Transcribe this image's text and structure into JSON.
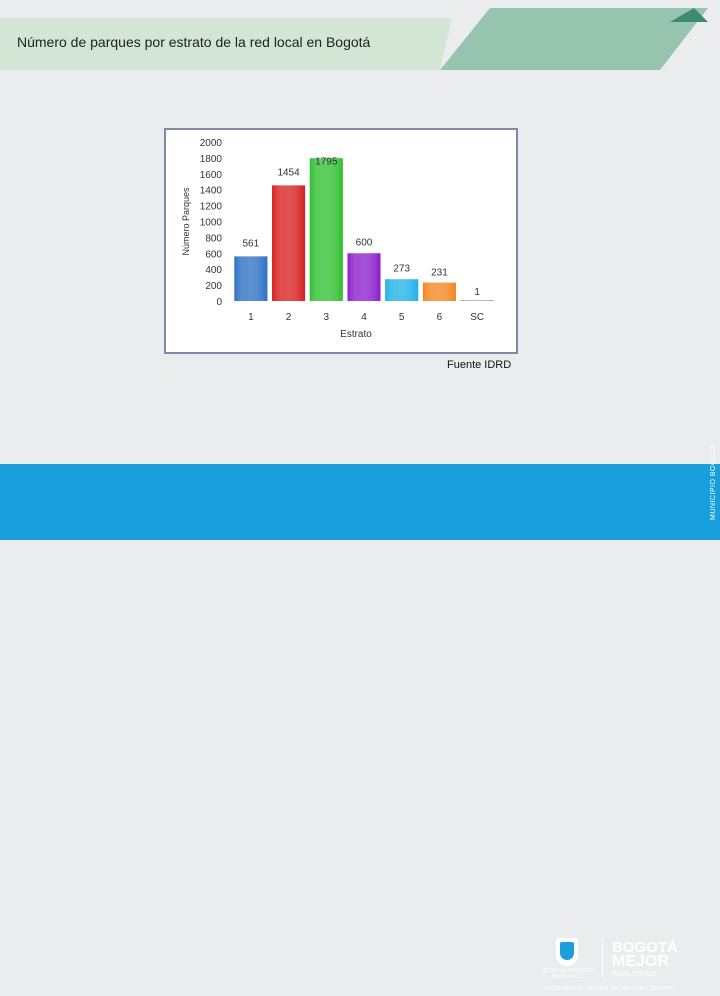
{
  "header": {
    "title": "Número de parques por estrato de la red local en Bogotá",
    "colors": {
      "band": "#d3e6d6",
      "accent": "#97c4ae"
    }
  },
  "chart_data": {
    "type": "bar",
    "categories": [
      "1",
      "2",
      "3",
      "4",
      "5",
      "6",
      "SC"
    ],
    "values": [
      561,
      1454,
      1795,
      600,
      273,
      231,
      1
    ],
    "colors": [
      "#2a6fc4",
      "#d71d1d",
      "#2fc02f",
      "#8a1ccc",
      "#1fb0e8",
      "#f2851f",
      "#999999"
    ],
    "xlabel": "Estrato",
    "ylabel": "Número Parques",
    "ylim": [
      0,
      2000
    ],
    "yticks": [
      "0",
      "200",
      "400",
      "600",
      "800",
      "1000",
      "1200",
      "1400",
      "1600",
      "1800",
      "2000"
    ],
    "grid": false,
    "legend": "none"
  },
  "source": "Fuente IDRD",
  "footer": {
    "color": "#19a0dc",
    "side_text": "MUNICIPIO BOGOTA",
    "logo": {
      "alcaldia": "ALCALDÍA MAYOR DE BOGOTÁ D.C.",
      "brand_line1": "BOGOTÁ",
      "brand_line2": "MEJOR",
      "brand_line3": "PARA TODOS",
      "secretaria": "SECRETARÍA DE CULTURA, RECREACIÓN Y DEPORTE"
    }
  }
}
